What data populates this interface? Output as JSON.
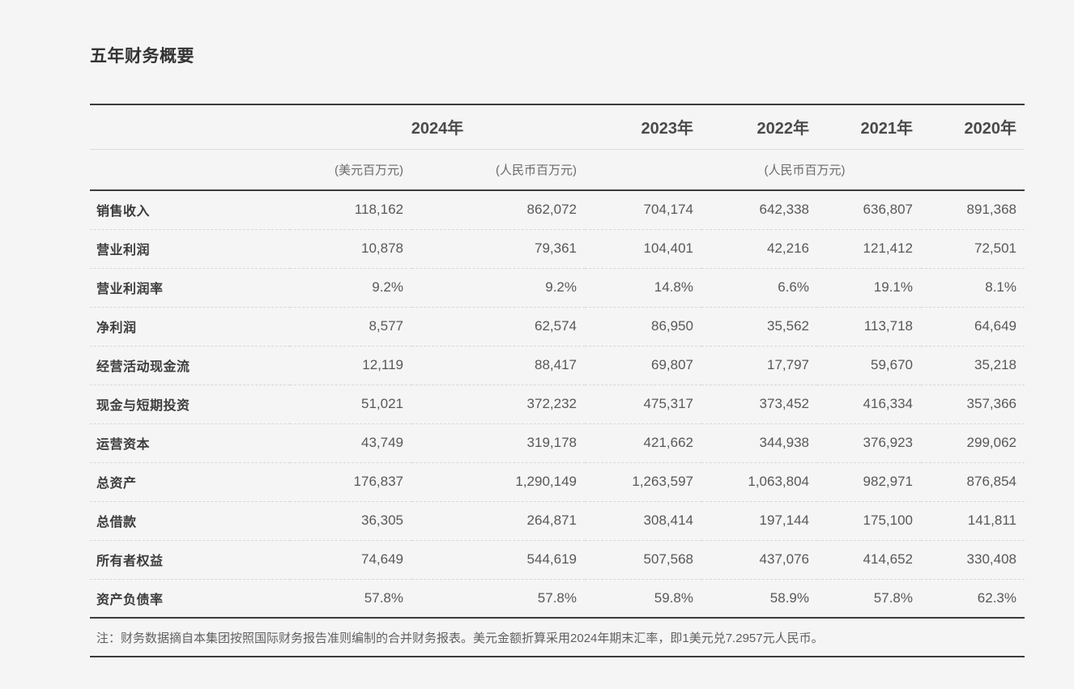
{
  "page": {
    "title": "五年财务概要"
  },
  "colors": {
    "background": "#f5f5f6",
    "rule_dark": "#3c3c3c",
    "rule_light_solid": "#dcdcdc",
    "rule_dashed": "#d8d8d8",
    "text_title": "#333333",
    "text_label": "#3d3d3d",
    "text_value": "#58585a",
    "text_unit": "#6a6a6a"
  },
  "table": {
    "year_headers": [
      "2024年",
      "2023年",
      "2022年",
      "2021年",
      "2020年"
    ],
    "units": {
      "usd": "(美元百万元)",
      "rmb": "(人民币百万元)",
      "rmb_span": "(人民币百万元)"
    },
    "rows": [
      {
        "label": "销售收入",
        "values": [
          "118,162",
          "862,072",
          "704,174",
          "642,338",
          "636,807",
          "891,368"
        ]
      },
      {
        "label": "营业利润",
        "values": [
          "10,878",
          "79,361",
          "104,401",
          "42,216",
          "121,412",
          "72,501"
        ]
      },
      {
        "label": "营业利润率",
        "values": [
          "9.2%",
          "9.2%",
          "14.8%",
          "6.6%",
          "19.1%",
          "8.1%"
        ]
      },
      {
        "label": "净利润",
        "values": [
          "8,577",
          "62,574",
          "86,950",
          "35,562",
          "113,718",
          "64,649"
        ]
      },
      {
        "label": "经营活动现金流",
        "values": [
          "12,119",
          "88,417",
          "69,807",
          "17,797",
          "59,670",
          "35,218"
        ]
      },
      {
        "label": "现金与短期投资",
        "values": [
          "51,021",
          "372,232",
          "475,317",
          "373,452",
          "416,334",
          "357,366"
        ]
      },
      {
        "label": "运营资本",
        "values": [
          "43,749",
          "319,178",
          "421,662",
          "344,938",
          "376,923",
          "299,062"
        ]
      },
      {
        "label": "总资产",
        "values": [
          "176,837",
          "1,290,149",
          "1,263,597",
          "1,063,804",
          "982,971",
          "876,854"
        ]
      },
      {
        "label": "总借款",
        "values": [
          "36,305",
          "264,871",
          "308,414",
          "197,144",
          "175,100",
          "141,811"
        ]
      },
      {
        "label": "所有者权益",
        "values": [
          "74,649",
          "544,619",
          "507,568",
          "437,076",
          "414,652",
          "330,408"
        ]
      },
      {
        "label": "资产负债率",
        "values": [
          "57.8%",
          "57.8%",
          "59.8%",
          "58.9%",
          "57.8%",
          "62.3%"
        ]
      }
    ],
    "note": "注：财务数据摘自本集团按照国际财务报告准则编制的合并财务报表。美元金额折算采用2024年期末汇率，即1美元兑7.2957元人民币。"
  }
}
